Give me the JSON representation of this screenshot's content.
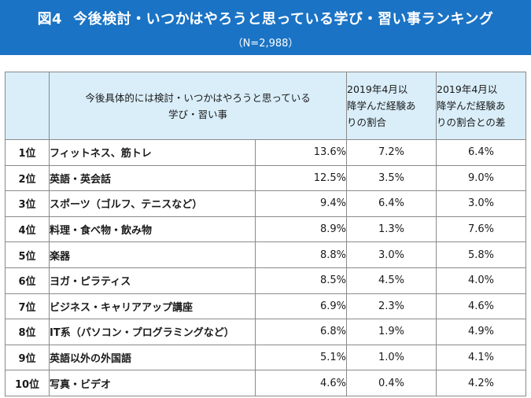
{
  "header": {
    "figure_label": "図4",
    "title": "今後検討・いつかはやろうと思っている学び・習い事ランキング",
    "sample_size": "（N=2,988）"
  },
  "table": {
    "columns": {
      "item_line1": "今後具体的には検討・いつかはやろうと思っている",
      "item_line2": "学び・習い事",
      "col_a_lines": [
        "2019年4月以",
        "降学んだ経験あ",
        "りの割合"
      ],
      "col_b_lines": [
        "2019年4月以",
        "降学んだ経験あ",
        "りの割合との差"
      ]
    },
    "rows": [
      {
        "rank": "1位",
        "item": "フィットネス、筋トレ",
        "percent": "13.6%",
        "experienced": "7.2%",
        "diff": "6.4%"
      },
      {
        "rank": "2位",
        "item": "英語・英会話",
        "percent": "12.5%",
        "experienced": "3.5%",
        "diff": "9.0%"
      },
      {
        "rank": "3位",
        "item": "スポーツ（ゴルフ、テニスなど）",
        "percent": "9.4%",
        "experienced": "6.4%",
        "diff": "3.0%"
      },
      {
        "rank": "4位",
        "item": "料理・食べ物・飲み物",
        "percent": "8.9%",
        "experienced": "1.3%",
        "diff": "7.6%"
      },
      {
        "rank": "5位",
        "item": "楽器",
        "percent": "8.8%",
        "experienced": "3.0%",
        "diff": "5.8%"
      },
      {
        "rank": "6位",
        "item": "ヨガ・ピラティス",
        "percent": "8.5%",
        "experienced": "4.5%",
        "diff": "4.0%"
      },
      {
        "rank": "7位",
        "item": "ビジネス・キャリアアップ講座",
        "percent": "6.9%",
        "experienced": "2.3%",
        "diff": "4.6%"
      },
      {
        "rank": "8位",
        "item": "IT系（パソコン・プログラミングなど）",
        "percent": "6.8%",
        "experienced": "1.9%",
        "diff": "4.9%"
      },
      {
        "rank": "9位",
        "item": "英語以外の外国語",
        "percent": "5.1%",
        "experienced": "1.0%",
        "diff": "4.1%"
      },
      {
        "rank": "10位",
        "item": "写真・ビデオ",
        "percent": "4.6%",
        "experienced": "0.4%",
        "diff": "4.2%"
      }
    ]
  },
  "colors": {
    "banner": "#1a73c4",
    "header_cell": "#d9eef9",
    "border": "#8a8a8a"
  }
}
